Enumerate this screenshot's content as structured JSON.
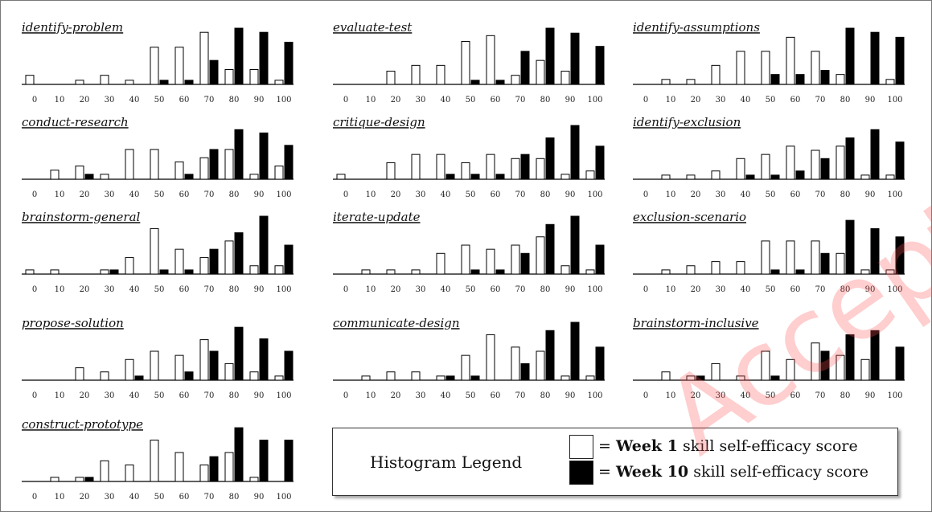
{
  "colors": {
    "week1": "#ffffff",
    "week10": "#000000",
    "axis": "#000000",
    "watermark": "#ff5050"
  },
  "watermark": "Accepted",
  "legend": {
    "title": "Histogram Legend",
    "week1": {
      "prefix": "= ",
      "bold": "Week 1",
      "rest": " skill self-efficacy score"
    },
    "week10": {
      "prefix": "= ",
      "bold": "Week 10",
      "rest": " skill self-efficacy score"
    }
  },
  "chart_data": [
    {
      "type": "bar",
      "title": "identify-problem",
      "categories": [
        "0",
        "10",
        "20",
        "30",
        "40",
        "50",
        "60",
        "70",
        "80",
        "90",
        "100"
      ],
      "series": [
        {
          "name": "Week 1",
          "values": [
            1.1,
            0,
            0.5,
            1.1,
            0.5,
            4.5,
            4.5,
            6.3,
            1.8,
            1.8,
            0.5
          ]
        },
        {
          "name": "Week 10",
          "values": [
            0,
            0,
            0,
            0,
            0,
            0.5,
            0.5,
            2.9,
            6.8,
            6.3,
            5.1
          ]
        }
      ]
    },
    {
      "type": "bar",
      "title": "evaluate-test",
      "categories": [
        "0",
        "10",
        "20",
        "30",
        "40",
        "50",
        "60",
        "70",
        "80",
        "90",
        "100"
      ],
      "series": [
        {
          "name": "Week 1",
          "values": [
            0,
            0,
            1.6,
            2.3,
            2.3,
            5.2,
            5.9,
            1.1,
            2.9,
            1.6,
            0
          ]
        },
        {
          "name": "Week 10",
          "values": [
            0,
            0,
            0,
            0,
            0,
            0.5,
            0.5,
            4.0,
            6.8,
            6.2,
            4.6
          ]
        }
      ]
    },
    {
      "type": "bar",
      "title": "identify-assumptions",
      "categories": [
        "0",
        "10",
        "20",
        "30",
        "40",
        "50",
        "60",
        "70",
        "80",
        "90",
        "100"
      ],
      "series": [
        {
          "name": "Week 1",
          "values": [
            0,
            0.6,
            0.6,
            2.3,
            4.0,
            4.0,
            5.7,
            4.0,
            1.2,
            0,
            0.6
          ]
        },
        {
          "name": "Week 10",
          "values": [
            0,
            0,
            0,
            0,
            0,
            1.2,
            1.2,
            1.7,
            6.8,
            6.3,
            5.7
          ]
        }
      ]
    },
    {
      "type": "bar",
      "title": "conduct-research",
      "categories": [
        "0",
        "10",
        "20",
        "30",
        "40",
        "50",
        "60",
        "70",
        "80",
        "90",
        "100"
      ],
      "series": [
        {
          "name": "Week 1",
          "values": [
            0,
            1.1,
            1.6,
            0.6,
            3.6,
            3.6,
            2.1,
            2.6,
            3.6,
            0.6,
            1.6
          ]
        },
        {
          "name": "Week 10",
          "values": [
            0,
            0,
            0.6,
            0,
            0,
            0,
            0.6,
            3.6,
            6.0,
            5.6,
            4.1
          ]
        }
      ]
    },
    {
      "type": "bar",
      "title": "critique-design",
      "categories": [
        "0",
        "10",
        "20",
        "30",
        "40",
        "50",
        "60",
        "70",
        "80",
        "90",
        "100"
      ],
      "series": [
        {
          "name": "Week 1",
          "values": [
            0.6,
            0,
            2.0,
            3.0,
            3.0,
            2.0,
            3.0,
            2.5,
            2.5,
            0.6,
            1.0
          ]
        },
        {
          "name": "Week 10",
          "values": [
            0,
            0,
            0,
            0,
            0.6,
            0.6,
            0.6,
            3.0,
            5.0,
            6.5,
            4.0
          ]
        }
      ]
    },
    {
      "type": "bar",
      "title": "identify-exclusion",
      "categories": [
        "0",
        "10",
        "20",
        "30",
        "40",
        "50",
        "60",
        "70",
        "80",
        "90",
        "100"
      ],
      "series": [
        {
          "name": "Week 1",
          "values": [
            0,
            0.5,
            0.5,
            1.0,
            2.5,
            3.0,
            4.0,
            3.5,
            4.0,
            0.5,
            0.5
          ]
        },
        {
          "name": "Week 10",
          "values": [
            0,
            0,
            0,
            0,
            0.5,
            0.5,
            1.0,
            2.5,
            5.0,
            6.0,
            4.5
          ]
        }
      ]
    },
    {
      "type": "bar",
      "title": "brainstorm-general",
      "categories": [
        "0",
        "10",
        "20",
        "30",
        "40",
        "50",
        "60",
        "70",
        "80",
        "90",
        "100"
      ],
      "series": [
        {
          "name": "Week 1",
          "values": [
            0.5,
            0.5,
            0,
            0.5,
            2.0,
            5.5,
            3.0,
            2.0,
            4.0,
            1.0,
            1.0
          ]
        },
        {
          "name": "Week 10",
          "values": [
            0,
            0,
            0,
            0.5,
            0,
            0.5,
            0.5,
            3.0,
            5.0,
            7.0,
            3.5
          ]
        }
      ]
    },
    {
      "type": "bar",
      "title": "iterate-update",
      "categories": [
        "0",
        "10",
        "20",
        "30",
        "40",
        "50",
        "60",
        "70",
        "80",
        "90",
        "100"
      ],
      "series": [
        {
          "name": "Week 1",
          "values": [
            0,
            0.5,
            0.5,
            0.5,
            2.5,
            3.5,
            3.0,
            3.5,
            4.5,
            1.0,
            0.5
          ]
        },
        {
          "name": "Week 10",
          "values": [
            0,
            0,
            0,
            0,
            0,
            0.5,
            0.5,
            2.5,
            6.0,
            7.0,
            3.5
          ]
        }
      ]
    },
    {
      "type": "bar",
      "title": "exclusion-scenario",
      "categories": [
        "0",
        "10",
        "20",
        "30",
        "40",
        "50",
        "60",
        "70",
        "80",
        "90",
        "100"
      ],
      "series": [
        {
          "name": "Week 1",
          "values": [
            0,
            0.5,
            1.0,
            1.5,
            1.5,
            4.0,
            4.0,
            4.0,
            2.5,
            0.5,
            0.5
          ]
        },
        {
          "name": "Week 10",
          "values": [
            0,
            0,
            0,
            0,
            0,
            0.5,
            0.5,
            2.5,
            6.5,
            5.5,
            4.5
          ]
        }
      ]
    },
    {
      "type": "bar",
      "title": "propose-solution",
      "categories": [
        "0",
        "10",
        "20",
        "30",
        "40",
        "50",
        "60",
        "70",
        "80",
        "90",
        "100"
      ],
      "series": [
        {
          "name": "Week 1",
          "values": [
            0,
            0,
            1.5,
            1.0,
            2.5,
            3.5,
            3.0,
            4.9,
            2.0,
            1.0,
            0.5
          ]
        },
        {
          "name": "Week 10",
          "values": [
            0,
            0,
            0,
            0,
            0.5,
            0,
            1.0,
            3.5,
            6.4,
            5.0,
            3.5
          ]
        }
      ]
    },
    {
      "type": "bar",
      "title": "communicate-design",
      "categories": [
        "0",
        "10",
        "20",
        "30",
        "40",
        "50",
        "60",
        "70",
        "80",
        "90",
        "100"
      ],
      "series": [
        {
          "name": "Week 1",
          "values": [
            0,
            0.5,
            1.0,
            1.0,
            0.5,
            3.0,
            5.5,
            4.0,
            3.5,
            0.5,
            0.5
          ]
        },
        {
          "name": "Week 10",
          "values": [
            0,
            0,
            0,
            0,
            0.5,
            0.5,
            0,
            2.0,
            6.0,
            7.0,
            4.0
          ]
        }
      ]
    },
    {
      "type": "bar",
      "title": "brainstorm-inclusive",
      "categories": [
        "0",
        "10",
        "20",
        "30",
        "40",
        "50",
        "60",
        "70",
        "80",
        "90",
        "100"
      ],
      "series": [
        {
          "name": "Week 1",
          "values": [
            0,
            1.0,
            0.5,
            2.0,
            0.5,
            3.5,
            2.5,
            4.5,
            3.0,
            2.5,
            0
          ]
        },
        {
          "name": "Week 10",
          "values": [
            0,
            0,
            0.5,
            0,
            0,
            0.5,
            0,
            3.5,
            5.5,
            6.0,
            4.0
          ]
        }
      ]
    },
    {
      "type": "bar",
      "title": "construct-prototype",
      "categories": [
        "0",
        "10",
        "20",
        "30",
        "40",
        "50",
        "60",
        "70",
        "80",
        "90",
        "100"
      ],
      "series": [
        {
          "name": "Week 1",
          "values": [
            0,
            0.5,
            0.5,
            2.5,
            2.0,
            5.0,
            3.5,
            2.0,
            3.5,
            0.5,
            0
          ]
        },
        {
          "name": "Week 10",
          "values": [
            0,
            0,
            0.5,
            0,
            0,
            0,
            0,
            3.0,
            6.5,
            5.0,
            5.0
          ]
        }
      ]
    }
  ]
}
